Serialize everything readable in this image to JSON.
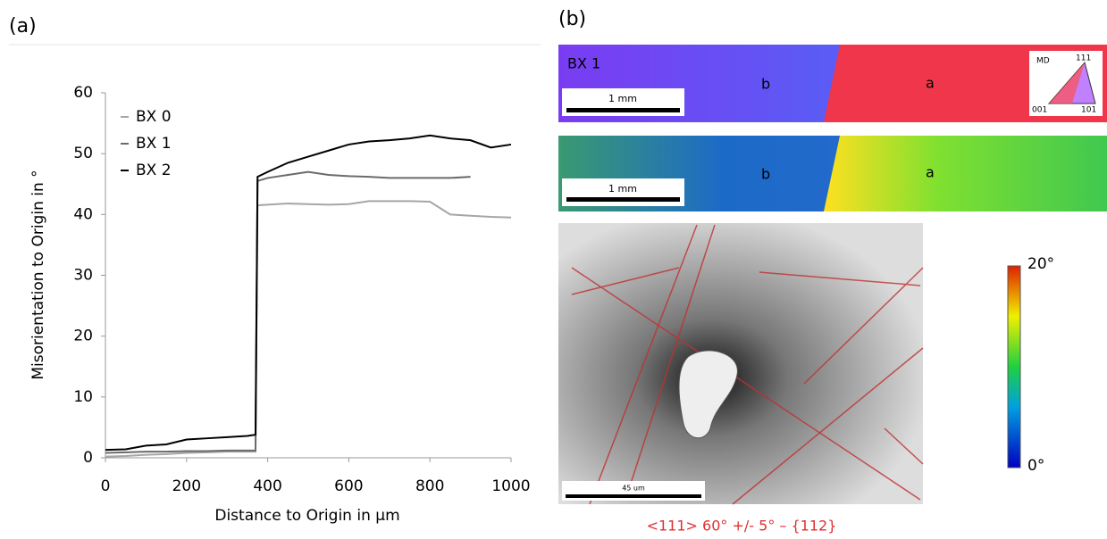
{
  "chart_data": {
    "type": "line",
    "panel_label": "(a)",
    "x_label": "Distance to Origin in µm",
    "y_label": "Misorientation to Origin in °",
    "x": [
      0,
      50,
      100,
      150,
      200,
      250,
      300,
      350,
      370,
      375,
      400,
      450,
      500,
      550,
      600,
      650,
      700,
      750,
      800,
      850,
      900,
      950,
      1000
    ],
    "series": [
      {
        "name": "BX 0",
        "color": "#a6a6a6",
        "values": [
          0.2,
          0.3,
          0.5,
          0.6,
          0.8,
          0.9,
          1.0,
          1.0,
          1.0,
          41.5,
          41.6,
          41.8,
          41.7,
          41.6,
          41.7,
          42.2,
          42.2,
          42.2,
          42.1,
          40,
          39.8,
          39.6,
          39.5
        ]
      },
      {
        "name": "BX 1",
        "color": "#6b6b6b",
        "values": [
          0.8,
          0.9,
          1.0,
          1.0,
          1.1,
          1.1,
          1.2,
          1.2,
          1.2,
          45.5,
          46,
          46.5,
          47,
          46.5,
          46.3,
          46.2,
          46,
          46,
          46,
          46,
          46.2,
          null,
          null
        ]
      },
      {
        "name": "BX 2",
        "color": "#000000",
        "values": [
          1.3,
          1.4,
          2.0,
          2.2,
          3.0,
          3.2,
          3.4,
          3.6,
          3.8,
          46.2,
          47,
          48.5,
          49.5,
          50.5,
          51.5,
          52,
          52.2,
          52.5,
          53,
          52.5,
          52.2,
          51,
          51.5
        ]
      }
    ],
    "xlim": [
      0,
      1000
    ],
    "xticks": [
      0,
      200,
      400,
      600,
      800,
      1000
    ],
    "ylim": [
      0,
      60
    ],
    "yticks": [
      0,
      10,
      20,
      30,
      40,
      50,
      60
    ],
    "grid": false,
    "legend": "upper-left"
  },
  "panel_b": {
    "label": "(b)",
    "map1": {
      "sample": "BX 1",
      "grain_left": "b",
      "grain_right": "a",
      "scale": "1 mm",
      "ipf_key": {
        "direction": "MD",
        "top": "111",
        "left": "001",
        "right": "101"
      }
    },
    "map2": {
      "grain_left": "b",
      "grain_right": "a",
      "scale": "1 mm"
    },
    "micrograph": {
      "scale": "45 um",
      "caption": "<111> 60° +/- 5° – {112}"
    },
    "colorbar": {
      "max": "20°",
      "min": "0°"
    }
  }
}
